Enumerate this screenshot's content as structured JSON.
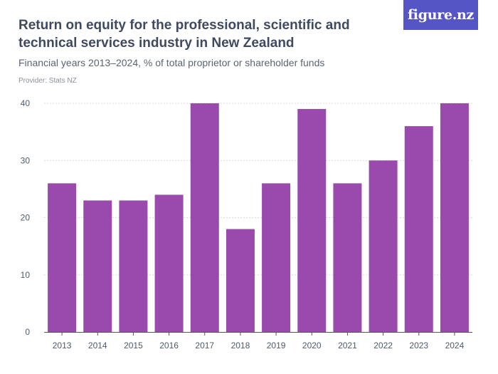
{
  "title": "Return on equity for the professional, scientific and technical services industry in New Zealand",
  "subtitle": "Financial years 2013–2024, % of total proprietor or shareholder funds",
  "provider": "Provider: Stats NZ",
  "logo": "figure.nz",
  "colors": {
    "bar": "#9a4aad",
    "grid": "#d8d8d8",
    "axis": "#555555",
    "logo_bg": "#5555c6"
  },
  "chart_data": {
    "type": "bar",
    "title": "Return on equity for the professional, scientific and technical services industry in New Zealand",
    "xlabel": "",
    "ylabel": "% of total proprietor or shareholder funds",
    "categories": [
      "2013",
      "2014",
      "2015",
      "2016",
      "2017",
      "2018",
      "2019",
      "2020",
      "2021",
      "2022",
      "2023",
      "2024"
    ],
    "values": [
      26,
      23,
      23,
      24,
      40,
      18,
      26,
      39,
      26,
      30,
      36,
      40
    ],
    "ylim": [
      0,
      40
    ],
    "yticks": [
      "0",
      "10",
      "20",
      "30",
      "40"
    ],
    "grid": true
  }
}
